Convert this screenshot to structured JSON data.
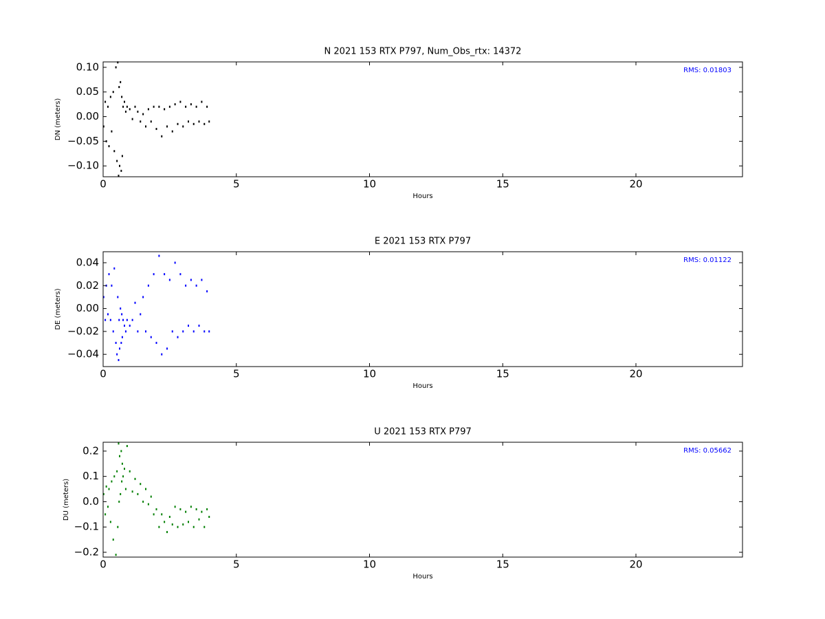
{
  "chart_data": [
    {
      "type": "scatter",
      "title": "N 2021 153 RTX  P797, Num_Obs_rtx: 14372",
      "xlabel": "Hours",
      "ylabel": "DN (meters)",
      "annotation": "RMS:  0.01803",
      "annotation_color": "#0000ff",
      "color": "#000000",
      "xlim": [
        0,
        24
      ],
      "ylim": [
        -0.122,
        0.111
      ],
      "xticks": [
        0,
        5,
        10,
        15,
        20
      ],
      "yticks": [
        {
          "value": 0.1,
          "label": "0.10"
        },
        {
          "value": 0.05,
          "label": "0.05"
        },
        {
          "value": 0,
          "label": "0.00"
        },
        {
          "value": -0.05,
          "label": "−0.05"
        },
        {
          "value": -0.1,
          "label": "−0.10"
        }
      ],
      "x": [
        0.02,
        0.08,
        0.12,
        0.18,
        0.22,
        0.28,
        0.32,
        0.38,
        0.42,
        0.48,
        0.52,
        0.55,
        0.58,
        0.6,
        0.62,
        0.65,
        0.68,
        0.7,
        0.72,
        0.75,
        0.8,
        0.85,
        0.9,
        1.0,
        1.1,
        1.2,
        1.3,
        1.4,
        1.5,
        1.6,
        1.7,
        1.8,
        1.9,
        2.0,
        2.1,
        2.2,
        2.3,
        2.4,
        2.5,
        2.6,
        2.7,
        2.8,
        2.9,
        3.0,
        3.1,
        3.2,
        3.3,
        3.4,
        3.5,
        3.6,
        3.7,
        3.8,
        3.9,
        3.98
      ],
      "values": [
        -0.02,
        0.03,
        -0.05,
        0.02,
        -0.06,
        0.04,
        -0.03,
        0.05,
        -0.07,
        0.1,
        -0.09,
        0.11,
        -0.12,
        0.06,
        -0.1,
        0.07,
        -0.11,
        0.04,
        -0.08,
        0.02,
        0.03,
        0.01,
        0.02,
        0.015,
        -0.005,
        0.02,
        0.01,
        -0.01,
        0.005,
        -0.02,
        0.015,
        -0.01,
        0.02,
        -0.025,
        0.02,
        -0.04,
        0.015,
        -0.02,
        0.02,
        -0.03,
        0.025,
        -0.015,
        0.03,
        -0.02,
        0.02,
        -0.01,
        0.025,
        -0.015,
        0.02,
        -0.01,
        0.03,
        -0.015,
        0.02,
        -0.01
      ]
    },
    {
      "type": "scatter",
      "title": "E 2021 153 RTX  P797",
      "xlabel": "Hours",
      "ylabel": "DE (meters)",
      "annotation": "RMS:  0.01122",
      "annotation_color": "#0000ff",
      "color": "#0000ff",
      "xlim": [
        0,
        24
      ],
      "ylim": [
        -0.0507,
        0.0496
      ],
      "xticks": [
        0,
        5,
        10,
        15,
        20
      ],
      "yticks": [
        0.04,
        0.02,
        {
          "value": 0,
          "label": "0.00"
        },
        {
          "value": -0.02,
          "label": "−0.02"
        },
        {
          "value": -0.04,
          "label": "−0.04"
        }
      ],
      "x": [
        0.02,
        0.08,
        0.12,
        0.18,
        0.22,
        0.28,
        0.32,
        0.38,
        0.42,
        0.48,
        0.52,
        0.55,
        0.58,
        0.6,
        0.62,
        0.65,
        0.68,
        0.7,
        0.72,
        0.75,
        0.8,
        0.85,
        0.9,
        1.0,
        1.1,
        1.2,
        1.3,
        1.4,
        1.5,
        1.6,
        1.7,
        1.8,
        1.9,
        2.0,
        2.1,
        2.2,
        2.3,
        2.4,
        2.5,
        2.6,
        2.7,
        2.8,
        2.9,
        3.0,
        3.1,
        3.2,
        3.3,
        3.4,
        3.5,
        3.6,
        3.7,
        3.8,
        3.9,
        3.98
      ],
      "values": [
        0.01,
        -0.01,
        0.02,
        -0.005,
        0.03,
        -0.01,
        0.02,
        -0.02,
        0.035,
        -0.03,
        -0.04,
        0.01,
        -0.045,
        -0.01,
        -0.035,
        0.0,
        -0.03,
        -0.005,
        -0.025,
        -0.01,
        -0.015,
        -0.02,
        -0.01,
        -0.015,
        -0.01,
        0.005,
        -0.02,
        -0.005,
        0.01,
        -0.02,
        0.02,
        -0.025,
        0.03,
        -0.03,
        0.046,
        -0.04,
        0.03,
        -0.035,
        0.025,
        -0.02,
        0.04,
        -0.025,
        0.03,
        -0.02,
        0.02,
        -0.015,
        0.025,
        -0.02,
        0.02,
        -0.015,
        0.025,
        -0.02,
        0.015,
        -0.02
      ]
    },
    {
      "type": "scatter",
      "title": "U 2021 153 RTX  P797",
      "xlabel": "Hours",
      "ylabel": "DU (meters)",
      "annotation": "RMS:  0.05662",
      "annotation_color": "#0000ff",
      "color": "#007f00",
      "xlim": [
        0,
        24
      ],
      "ylim": [
        -0.219,
        0.235
      ],
      "xticks": [
        0,
        5,
        10,
        15,
        20
      ],
      "yticks": [
        0.2,
        0.1,
        {
          "value": 0,
          "label": "0.0"
        },
        {
          "value": -0.1,
          "label": "−0.1"
        },
        {
          "value": -0.2,
          "label": "−0.2"
        }
      ],
      "x": [
        0.02,
        0.08,
        0.12,
        0.18,
        0.22,
        0.28,
        0.32,
        0.38,
        0.42,
        0.48,
        0.52,
        0.55,
        0.58,
        0.6,
        0.62,
        0.65,
        0.68,
        0.7,
        0.72,
        0.75,
        0.8,
        0.85,
        0.9,
        1.0,
        1.1,
        1.2,
        1.3,
        1.4,
        1.5,
        1.6,
        1.7,
        1.8,
        1.9,
        2.0,
        2.1,
        2.2,
        2.3,
        2.4,
        2.5,
        2.6,
        2.7,
        2.8,
        2.9,
        3.0,
        3.1,
        3.2,
        3.3,
        3.4,
        3.5,
        3.6,
        3.7,
        3.8,
        3.9,
        3.98
      ],
      "values": [
        0.03,
        -0.05,
        0.06,
        -0.02,
        0.05,
        -0.08,
        0.08,
        -0.15,
        0.1,
        -0.21,
        0.12,
        -0.1,
        0.23,
        0.0,
        0.18,
        0.03,
        0.2,
        0.08,
        0.15,
        0.1,
        0.13,
        0.05,
        0.22,
        0.12,
        0.04,
        0.09,
        0.03,
        0.07,
        0.0,
        0.05,
        -0.01,
        0.02,
        -0.05,
        -0.03,
        -0.1,
        -0.05,
        -0.08,
        -0.12,
        -0.06,
        -0.09,
        -0.02,
        -0.1,
        -0.03,
        -0.09,
        -0.04,
        -0.08,
        -0.02,
        -0.1,
        -0.03,
        -0.07,
        -0.04,
        -0.1,
        -0.03,
        -0.06
      ]
    }
  ]
}
